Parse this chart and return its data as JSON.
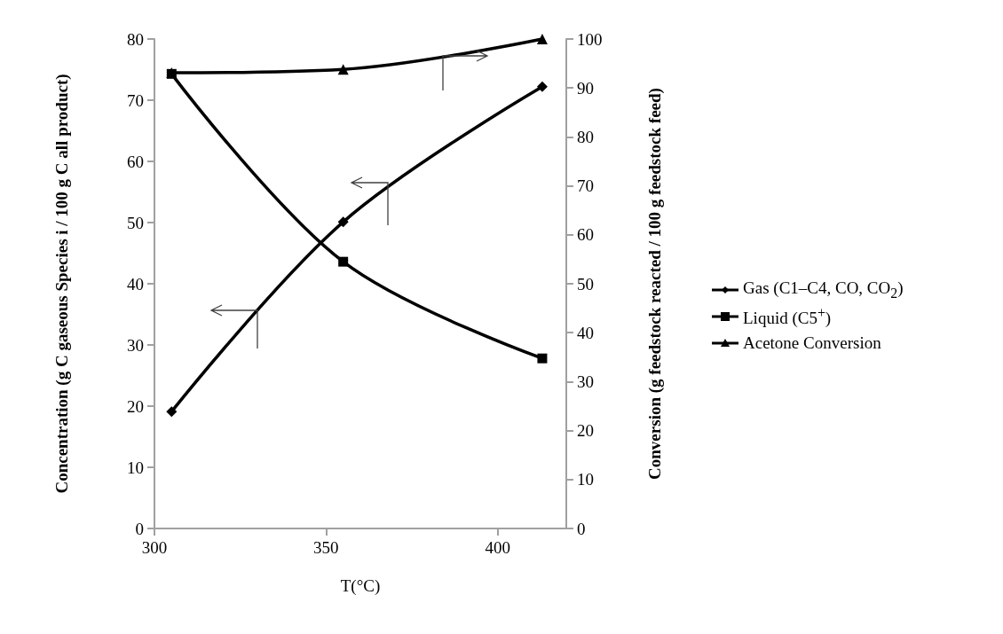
{
  "chart_data": {
    "type": "line",
    "xlabel": "T(°C)",
    "ylabel": "Concentration (g C gaseous Species i / 100 g C all product)",
    "y2label": "Conversion (g feedstock reacted / 100 g feedstock feed)",
    "x": [
      305,
      355,
      413
    ],
    "series": [
      {
        "name": "Gas (C1–C4, CO, CO$_{2}$)",
        "color": "#000000",
        "marker": "diamond",
        "values": [
          19.1,
          50.1,
          72.2
        ]
      },
      {
        "name": "Liquid (C5$^{+}$)",
        "color": "#000000",
        "marker": "square",
        "values": [
          74.3,
          43.6,
          27.8
        ]
      },
      {
        "name": "Acetone Conversion",
        "color": "#000000",
        "marker": "triangle",
        "axis": "y2",
        "values": [
          93.1,
          93.8,
          100
        ]
      }
    ],
    "xlim": [
      300,
      420
    ],
    "xticks": [
      300,
      350,
      400
    ],
    "ylim": [
      0,
      80
    ],
    "yticks": [
      0,
      10,
      20,
      30,
      40,
      50,
      60,
      70,
      80
    ],
    "y2lim": [
      0,
      100
    ],
    "y2ticks": [
      0,
      10,
      20,
      30,
      40,
      50,
      60,
      70,
      80,
      90,
      100
    ],
    "grid": false,
    "legend": "right",
    "line_style": "solid"
  }
}
